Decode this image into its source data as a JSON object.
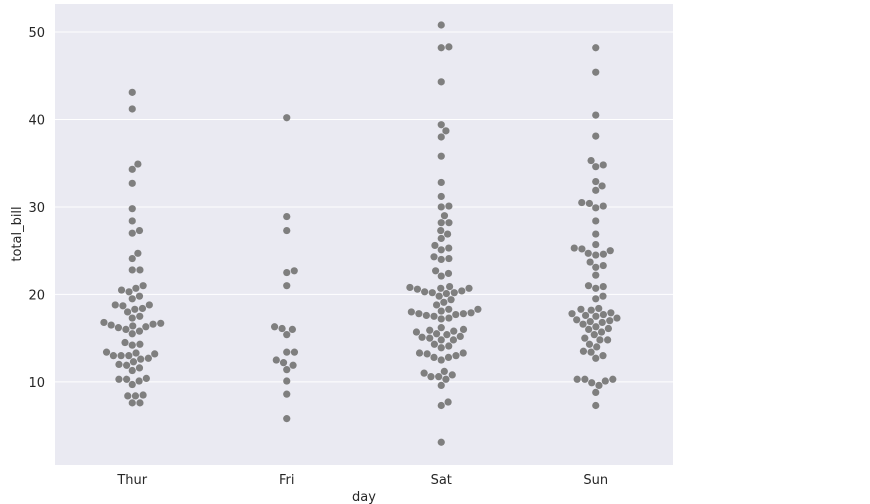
{
  "chart_data": {
    "type": "scatter",
    "subtype": "swarm",
    "title": "",
    "xlabel": "day",
    "ylabel": "total_bill",
    "ylim": [
      0.5,
      53.2
    ],
    "yticks": [
      10,
      20,
      30,
      40,
      50
    ],
    "grid": true,
    "point_color": "#7f7f7f",
    "background_color": "#eaeaf2",
    "categories": [
      "Thur",
      "Fri",
      "Sat",
      "Sun"
    ],
    "points": [
      {
        "day": "Thur",
        "values": [
          7.6,
          7.6,
          8.4,
          8.4,
          8.5,
          9.7,
          10.1,
          10.3,
          10.3,
          10.4,
          11.3,
          11.6,
          11.9,
          12.0,
          12.3,
          12.6,
          12.7,
          13.0,
          13.0,
          13.0,
          13.2,
          13.3,
          13.4,
          14.2,
          14.3,
          14.5,
          15.5,
          15.8,
          16.0,
          16.2,
          16.3,
          16.4,
          16.5,
          16.6,
          16.7,
          16.8,
          17.3,
          17.5,
          18.0,
          18.3,
          18.4,
          18.7,
          18.8,
          18.8,
          19.5,
          19.8,
          20.3,
          20.5,
          20.7,
          21.0,
          22.8,
          22.8,
          24.1,
          24.7,
          27.0,
          27.3,
          28.4,
          29.8,
          32.7,
          34.3,
          34.9,
          41.2,
          43.1
        ]
      },
      {
        "day": "Fri",
        "values": [
          5.8,
          8.6,
          10.1,
          11.4,
          11.9,
          12.2,
          12.5,
          13.4,
          13.4,
          15.4,
          16.0,
          16.1,
          16.3,
          21.0,
          22.5,
          22.7,
          27.3,
          28.9,
          40.2
        ]
      },
      {
        "day": "Sat",
        "values": [
          3.1,
          7.3,
          7.7,
          9.6,
          10.3,
          10.6,
          10.6,
          10.8,
          11.0,
          11.2,
          12.5,
          12.8,
          12.8,
          13.0,
          13.2,
          13.3,
          13.3,
          13.9,
          14.1,
          14.3,
          14.8,
          14.8,
          15.0,
          15.1,
          15.2,
          15.4,
          15.5,
          15.7,
          15.8,
          15.9,
          16.0,
          16.2,
          17.2,
          17.3,
          17.5,
          17.6,
          17.7,
          17.8,
          17.8,
          17.9,
          18.0,
          18.1,
          18.3,
          18.3,
          18.8,
          19.1,
          19.4,
          19.8,
          20.1,
          20.2,
          20.2,
          20.3,
          20.4,
          20.6,
          20.7,
          20.7,
          20.8,
          20.9,
          22.1,
          22.4,
          22.7,
          24.0,
          24.1,
          24.3,
          25.1,
          25.3,
          25.6,
          26.4,
          26.9,
          27.3,
          28.2,
          28.2,
          29.0,
          30.0,
          30.1,
          31.2,
          32.8,
          35.8,
          38.0,
          38.7,
          39.4,
          44.3,
          48.2,
          48.3,
          50.8
        ]
      },
      {
        "day": "Sun",
        "values": [
          7.3,
          8.8,
          9.6,
          9.9,
          10.1,
          10.3,
          10.3,
          10.3,
          12.7,
          13.0,
          13.4,
          13.5,
          14.0,
          14.3,
          14.8,
          14.8,
          15.0,
          15.4,
          15.7,
          16.0,
          16.1,
          16.3,
          16.6,
          16.8,
          16.9,
          17.0,
          17.1,
          17.3,
          17.5,
          17.6,
          17.7,
          17.8,
          17.9,
          18.2,
          18.3,
          18.4,
          19.5,
          19.8,
          20.7,
          20.9,
          21.0,
          22.2,
          23.1,
          23.3,
          23.7,
          24.5,
          24.6,
          24.7,
          25.0,
          25.2,
          25.3,
          25.7,
          26.9,
          28.4,
          29.9,
          30.1,
          30.4,
          30.5,
          31.9,
          32.4,
          32.9,
          34.6,
          34.8,
          35.3,
          38.1,
          40.5,
          45.4,
          48.2
        ]
      }
    ]
  }
}
